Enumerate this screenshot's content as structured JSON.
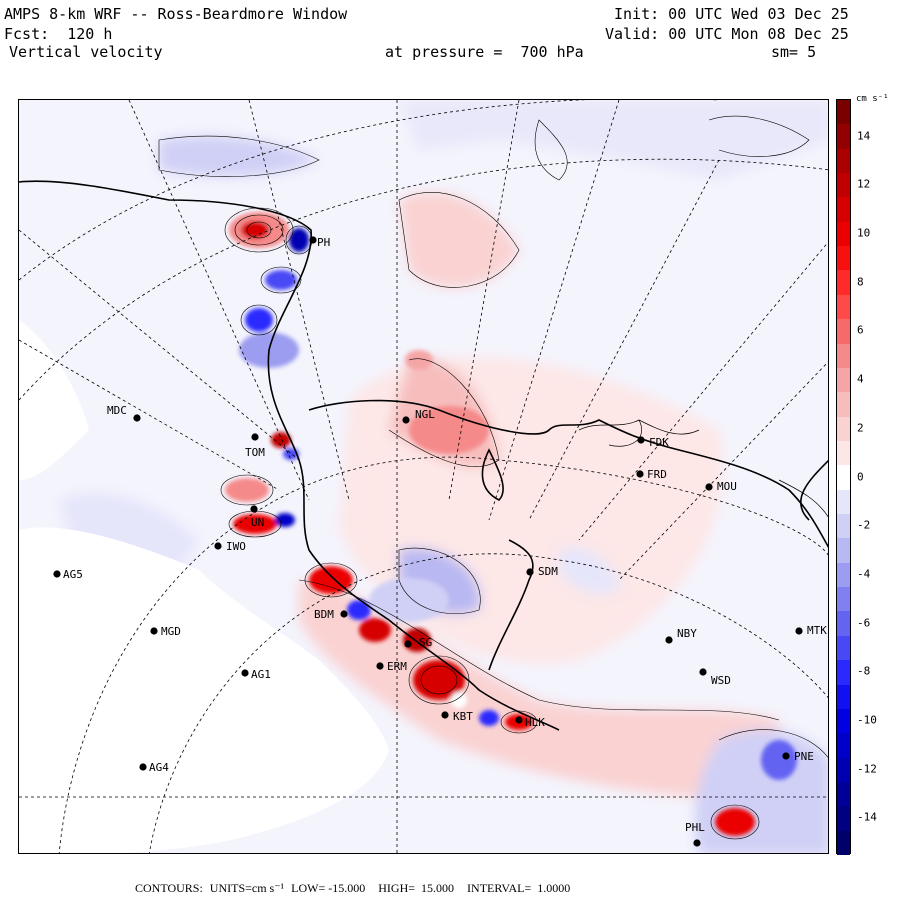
{
  "header": {
    "title": "AMPS 8-km WRF -- Ross-Beardmore Window",
    "forecast": "Fcst:  120 h",
    "variable": "Vertical velocity",
    "init": "Init: 00 UTC Wed 03 Dec 25",
    "valid": "Valid: 00 UTC Mon 08 Dec 25",
    "pressure": "at pressure =  700 hPa",
    "smoothing": "sm= 5"
  },
  "colorbar": {
    "unit_label": "cm s⁻¹",
    "tick_labels": [
      "14",
      "12",
      "10",
      "8",
      "6",
      "4",
      "2",
      "0",
      "-2",
      "-4",
      "-6",
      "-8",
      "-10",
      "-12",
      "-14"
    ],
    "levels": [
      {
        "value": 15,
        "color": "#7a0000"
      },
      {
        "value": 14,
        "color": "#930000"
      },
      {
        "value": 13,
        "color": "#aa0000"
      },
      {
        "value": 12,
        "color": "#c00000"
      },
      {
        "value": 11,
        "color": "#d60000"
      },
      {
        "value": 10,
        "color": "#ea0000"
      },
      {
        "value": 9,
        "color": "#f81010"
      },
      {
        "value": 8,
        "color": "#ff2a2a"
      },
      {
        "value": 7,
        "color": "#ff4a4a"
      },
      {
        "value": 6,
        "color": "#f86a6a"
      },
      {
        "value": 5,
        "color": "#f58a8a"
      },
      {
        "value": 4,
        "color": "#f5a5a5"
      },
      {
        "value": 3,
        "color": "#f7bdbd"
      },
      {
        "value": 2,
        "color": "#fad2d2"
      },
      {
        "value": 1,
        "color": "#fde6e6"
      },
      {
        "value": 0,
        "color": "#ffffff"
      },
      {
        "value": -1,
        "color": "#e6e6fb"
      },
      {
        "value": -2,
        "color": "#d0d0f6"
      },
      {
        "value": -3,
        "color": "#b8b8f2"
      },
      {
        "value": -4,
        "color": "#9c9cf0"
      },
      {
        "value": -5,
        "color": "#8080f0"
      },
      {
        "value": -6,
        "color": "#6464f2"
      },
      {
        "value": -7,
        "color": "#4848f5"
      },
      {
        "value": -8,
        "color": "#2a2aff"
      },
      {
        "value": -9,
        "color": "#1010f0"
      },
      {
        "value": -10,
        "color": "#0000e0"
      },
      {
        "value": -11,
        "color": "#0000c8"
      },
      {
        "value": -12,
        "color": "#0000b0"
      },
      {
        "value": -13,
        "color": "#000098"
      },
      {
        "value": -14,
        "color": "#000080"
      },
      {
        "value": -15,
        "color": "#00006a"
      }
    ]
  },
  "stations": [
    {
      "id": "PH",
      "label": "PH"
    },
    {
      "id": "MDC",
      "label": "MDC"
    },
    {
      "id": "NGL",
      "label": "NGL"
    },
    {
      "id": "FDK",
      "label": "FDK"
    },
    {
      "id": "FRD",
      "label": "FRD"
    },
    {
      "id": "MOU",
      "label": "MOU"
    },
    {
      "id": "TOM",
      "label": "TOM"
    },
    {
      "id": "UN",
      "label": "UN"
    },
    {
      "id": "IWO",
      "label": "IWO"
    },
    {
      "id": "AG5",
      "label": "AG5"
    },
    {
      "id": "SDM",
      "label": "SDM"
    },
    {
      "id": "MGD",
      "label": "MGD"
    },
    {
      "id": "BDM",
      "label": "BDM"
    },
    {
      "id": "NBY",
      "label": "NBY"
    },
    {
      "id": "MTK",
      "label": "MTK"
    },
    {
      "id": "AG1",
      "label": "AG1"
    },
    {
      "id": "ERM",
      "label": "ERM"
    },
    {
      "id": "WSD",
      "label": "WSD"
    },
    {
      "id": "SG",
      "label": "SG"
    },
    {
      "id": "KBT",
      "label": "KBT"
    },
    {
      "id": "HLK",
      "label": "HLK"
    },
    {
      "id": "AG4",
      "label": "AG4"
    },
    {
      "id": "PNE",
      "label": "PNE"
    },
    {
      "id": "PHL",
      "label": "PHL"
    }
  ],
  "footer": {
    "contours": "CONTOURS:",
    "units": "UNITS=cm s⁻¹",
    "low": "LOW= -15.000",
    "high": "HIGH=  15.000",
    "interval": "INTERVAL=  1.0000"
  }
}
